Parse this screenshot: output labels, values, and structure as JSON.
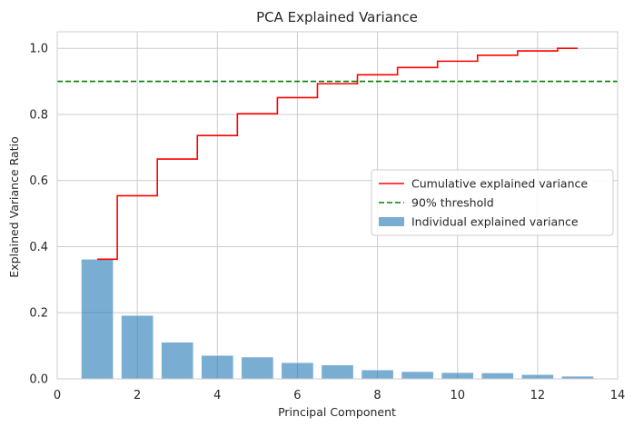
{
  "chart_data": {
    "type": "bar",
    "title": "PCA Explained Variance",
    "xlabel": "Principal Component",
    "ylabel": "Explained Variance Ratio",
    "xlim": [
      0,
      14
    ],
    "ylim": [
      0,
      1.05
    ],
    "x_ticks": [
      0,
      2,
      4,
      6,
      8,
      10,
      12,
      14
    ],
    "y_ticks": [
      0.0,
      0.2,
      0.4,
      0.6,
      0.8,
      1.0
    ],
    "x_tick_labels": [
      "0",
      "2",
      "4",
      "6",
      "8",
      "10",
      "12",
      "14"
    ],
    "y_tick_labels": [
      "0.0",
      "0.2",
      "0.4",
      "0.6",
      "0.8",
      "1.0"
    ],
    "grid": true,
    "legend_position": "center-right",
    "components": [
      1,
      2,
      3,
      4,
      5,
      6,
      7,
      8,
      9,
      10,
      11,
      12,
      13
    ],
    "series": [
      {
        "name": "Individual explained variance",
        "type": "bar",
        "color": "#1f77b4",
        "values": [
          0.362,
          0.192,
          0.111,
          0.071,
          0.066,
          0.049,
          0.042,
          0.027,
          0.022,
          0.019,
          0.018,
          0.013,
          0.008
        ]
      },
      {
        "name": "Cumulative explained variance",
        "type": "step",
        "color": "#ff0000",
        "values": [
          0.362,
          0.554,
          0.665,
          0.736,
          0.802,
          0.851,
          0.893,
          0.92,
          0.942,
          0.961,
          0.979,
          0.992,
          1.0
        ]
      },
      {
        "name": "90% threshold",
        "type": "hline",
        "color": "#008000",
        "value": 0.9
      }
    ]
  }
}
